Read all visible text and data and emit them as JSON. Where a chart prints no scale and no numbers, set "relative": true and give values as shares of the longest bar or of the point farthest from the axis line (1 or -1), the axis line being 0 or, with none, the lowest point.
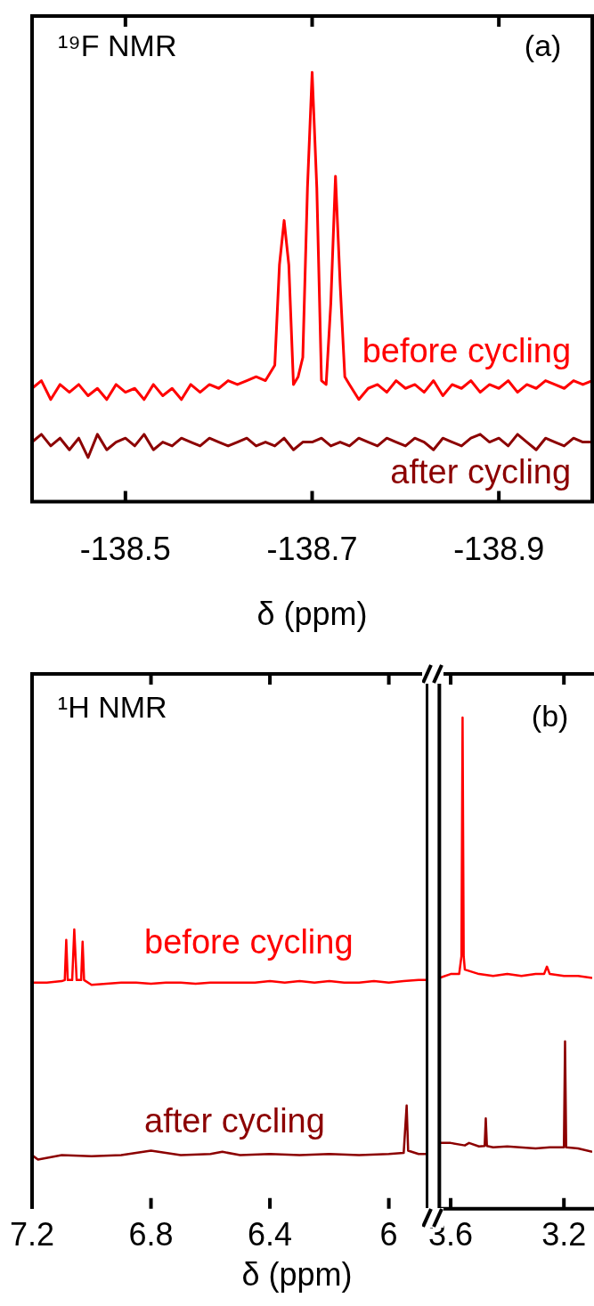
{
  "chart_data": [
    {
      "type": "line",
      "xlabel": "δ (ppm)",
      "annotations": [
        "¹⁹F NMR",
        "(a)"
      ],
      "relative": true,
      "tick_labels": "x",
      "xlim": [
        -138.4,
        -139.0
      ],
      "xticks": [
        -138.5,
        -138.7,
        -138.9
      ],
      "series": [
        {
          "name": "before cycling",
          "color": "#ff0000",
          "x": [
            -138.4,
            -138.41,
            -138.42,
            -138.43,
            -138.44,
            -138.45,
            -138.46,
            -138.47,
            -138.48,
            -138.49,
            -138.5,
            -138.51,
            -138.52,
            -138.53,
            -138.54,
            -138.55,
            -138.56,
            -138.57,
            -138.58,
            -138.59,
            -138.6,
            -138.61,
            -138.62,
            -138.63,
            -138.64,
            -138.65,
            -138.66,
            -138.665,
            -138.67,
            -138.675,
            -138.68,
            -138.685,
            -138.69,
            -138.695,
            -138.7,
            -138.705,
            -138.71,
            -138.715,
            -138.72,
            -138.725,
            -138.73,
            -138.735,
            -138.74,
            -138.75,
            -138.76,
            -138.77,
            -138.78,
            -138.79,
            -138.8,
            -138.81,
            -138.82,
            -138.83,
            -138.84,
            -138.85,
            -138.86,
            -138.87,
            -138.88,
            -138.89,
            -138.9,
            -138.91,
            -138.92,
            -138.93,
            -138.94,
            -138.95,
            -138.96,
            -138.97,
            -138.98,
            -138.99,
            -139.0
          ],
          "values": [
            0.264,
            0.282,
            0.238,
            0.273,
            0.255,
            0.273,
            0.247,
            0.264,
            0.238,
            0.273,
            0.255,
            0.264,
            0.238,
            0.273,
            0.247,
            0.264,
            0.238,
            0.273,
            0.255,
            0.273,
            0.264,
            0.282,
            0.273,
            0.282,
            0.291,
            0.282,
            0.318,
            0.552,
            0.655,
            0.552,
            0.273,
            0.291,
            0.336,
            0.731,
            1,
            0.731,
            0.282,
            0.273,
            0.462,
            0.758,
            0.507,
            0.291,
            0.273,
            0.238,
            0.264,
            0.273,
            0.255,
            0.282,
            0.264,
            0.273,
            0.255,
            0.282,
            0.247,
            0.273,
            0.264,
            0.282,
            0.255,
            0.273,
            0.264,
            0.282,
            0.255,
            0.273,
            0.264,
            0.282,
            0.273,
            0.264,
            0.282,
            0.273,
            0.282
          ]
        },
        {
          "name": "after cycling",
          "color": "#8c0000",
          "x": [
            -138.4,
            -138.41,
            -138.42,
            -138.43,
            -138.44,
            -138.45,
            -138.46,
            -138.47,
            -138.48,
            -138.49,
            -138.5,
            -138.51,
            -138.52,
            -138.53,
            -138.54,
            -138.55,
            -138.56,
            -138.57,
            -138.58,
            -138.59,
            -138.6,
            -138.61,
            -138.62,
            -138.63,
            -138.64,
            -138.65,
            -138.66,
            -138.67,
            -138.68,
            -138.69,
            -138.7,
            -138.71,
            -138.72,
            -138.73,
            -138.74,
            -138.75,
            -138.76,
            -138.77,
            -138.78,
            -138.79,
            -138.8,
            -138.81,
            -138.82,
            -138.83,
            -138.84,
            -138.85,
            -138.86,
            -138.87,
            -138.88,
            -138.89,
            -138.9,
            -138.91,
            -138.92,
            -138.93,
            -138.94,
            -138.95,
            -138.96,
            -138.97,
            -138.98,
            -138.99,
            -139.0
          ],
          "values": [
            0.139,
            0.157,
            0.13,
            0.148,
            0.121,
            0.148,
            0.103,
            0.157,
            0.121,
            0.139,
            0.148,
            0.13,
            0.157,
            0.121,
            0.139,
            0.13,
            0.148,
            0.139,
            0.13,
            0.148,
            0.139,
            0.13,
            0.139,
            0.148,
            0.13,
            0.139,
            0.13,
            0.148,
            0.121,
            0.139,
            0.139,
            0.148,
            0.13,
            0.139,
            0.13,
            0.148,
            0.139,
            0.13,
            0.148,
            0.139,
            0.13,
            0.148,
            0.139,
            0.121,
            0.148,
            0.139,
            0.13,
            0.148,
            0.157,
            0.139,
            0.148,
            0.13,
            0.157,
            0.139,
            0.121,
            0.148,
            0.139,
            0.13,
            0.148,
            0.139,
            0.139
          ]
        }
      ]
    },
    {
      "type": "line",
      "xlabel": "δ (ppm)",
      "annotations": [
        "¹H NMR"
      ],
      "relative": true,
      "tick_labels": "x",
      "xlim": [
        7.2,
        5.87
      ],
      "xticks": [
        7.2,
        6.8,
        6.4,
        6
      ],
      "series": [
        {
          "name": "before cycling",
          "color": "#ff0000",
          "x": [
            7.2,
            7.15,
            7.1,
            7.09,
            7.085,
            7.08,
            7.065,
            7.058,
            7.05,
            7.035,
            7.03,
            7.025,
            7.0,
            6.95,
            6.9,
            6.85,
            6.8,
            6.75,
            6.7,
            6.65,
            6.6,
            6.55,
            6.5,
            6.45,
            6.4,
            6.35,
            6.3,
            6.25,
            6.2,
            6.15,
            6.1,
            6.05,
            6.0,
            5.95,
            5.9,
            5.87
          ],
          "values": [
            0.81,
            0.81,
            0.815,
            0.819,
            0.963,
            0.819,
            0.819,
            1,
            0.819,
            0.819,
            0.956,
            0.819,
            0.802,
            0.806,
            0.81,
            0.81,
            0.806,
            0.81,
            0.81,
            0.806,
            0.81,
            0.81,
            0.81,
            0.81,
            0.815,
            0.81,
            0.815,
            0.81,
            0.815,
            0.81,
            0.81,
            0.815,
            0.81,
            0.815,
            0.819,
            0.819
          ]
        },
        {
          "name": "after cycling",
          "color": "#8c0000",
          "x": [
            7.2,
            7.18,
            7.1,
            7.0,
            6.9,
            6.8,
            6.7,
            6.6,
            6.56,
            6.5,
            6.4,
            6.3,
            6.2,
            6.1,
            6.0,
            5.95,
            5.94,
            5.935,
            5.9,
            5.87
          ],
          "values": [
            0.192,
            0.176,
            0.192,
            0.188,
            0.192,
            0.208,
            0.192,
            0.196,
            0.204,
            0.192,
            0.196,
            0.192,
            0.196,
            0.192,
            0.196,
            0.2,
            0.37,
            0.208,
            0.196,
            0.196
          ]
        }
      ]
    },
    {
      "type": "line",
      "annotations": [
        "(b)"
      ],
      "relative": true,
      "tick_labels": "x",
      "xlim": [
        3.64,
        3.1
      ],
      "xticks": [
        3.6,
        3.2
      ],
      "series": [
        {
          "color": "#ff0000",
          "x": [
            3.64,
            3.6,
            3.57,
            3.562,
            3.558,
            3.554,
            3.55,
            3.5,
            3.45,
            3.4,
            3.35,
            3.3,
            3.27,
            3.26,
            3.25,
            3.2,
            3.15,
            3.1
          ],
          "values": [
            0.47,
            0.478,
            0.478,
            0.514,
            1,
            0.514,
            0.487,
            0.478,
            0.474,
            0.478,
            0.474,
            0.478,
            0.478,
            0.493,
            0.478,
            0.474,
            0.474,
            0.47
          ]
        },
        {
          "color": "#8c0000",
          "x": [
            3.64,
            3.6,
            3.55,
            3.535,
            3.5,
            3.48,
            3.476,
            3.472,
            3.45,
            3.4,
            3.3,
            3.25,
            3.2,
            3.196,
            3.192,
            3.15,
            3.1
          ],
          "values": [
            0.134,
            0.134,
            0.129,
            0.134,
            0.127,
            0.128,
            0.184,
            0.128,
            0.125,
            0.127,
            0.123,
            0.125,
            0.125,
            0.341,
            0.125,
            0.123,
            0.116
          ]
        }
      ]
    }
  ]
}
